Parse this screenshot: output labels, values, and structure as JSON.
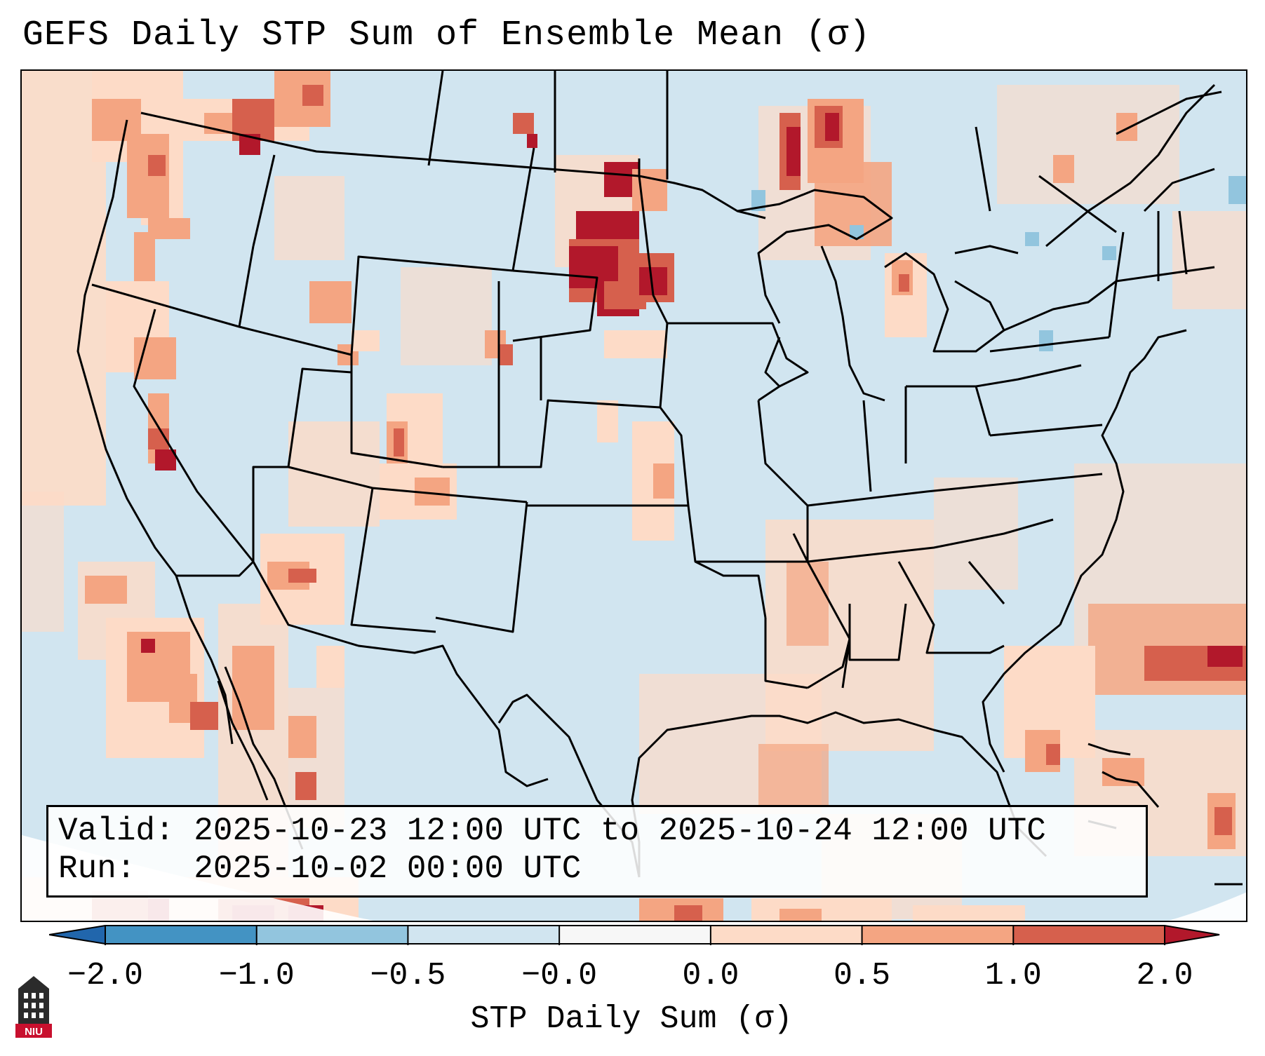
{
  "title": "GEFS Daily STP Sum of Ensemble Mean (σ)",
  "info": {
    "valid_label": "Valid:",
    "valid_value": "2025-10-23 12:00 UTC to 2025-10-24 12:00 UTC",
    "run_label": "Run:",
    "run_value": "2025-10-02 00:00 UTC"
  },
  "colorbar": {
    "label": "STP Daily Sum (σ)",
    "ticks": [
      "−2.0",
      "−1.0",
      "−0.5",
      "−0.0",
      "0.0",
      "0.5",
      "1.0",
      "2.0"
    ],
    "bins": [
      {
        "from": -2.0,
        "to": -1.0,
        "color": "#4393c3"
      },
      {
        "from": -1.0,
        "to": -0.5,
        "color": "#92c5de"
      },
      {
        "from": -0.5,
        "to": -0.0,
        "color": "#d1e5f0"
      },
      {
        "from": -0.0,
        "to": 0.0,
        "color": "#f7f7f7"
      },
      {
        "from": 0.0,
        "to": 0.5,
        "color": "#fddbc7"
      },
      {
        "from": 0.5,
        "to": 1.0,
        "color": "#f4a582"
      },
      {
        "from": 1.0,
        "to": 2.0,
        "color": "#d6604d"
      }
    ],
    "under_color": "#2166ac",
    "over_color": "#b2182b"
  },
  "logo": {
    "text": "NIU",
    "icon": "university-building-logo"
  }
}
